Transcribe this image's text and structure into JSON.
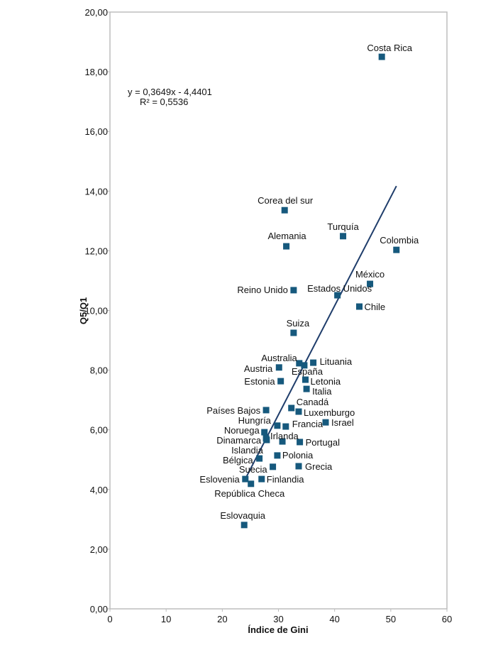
{
  "chart_data": {
    "type": "scatter",
    "xlabel": "Índice de Gini",
    "ylabel": "Q5/Q1",
    "xlim": [
      0,
      60
    ],
    "ylim": [
      0,
      20
    ],
    "xticks": [
      "0",
      "10",
      "20",
      "30",
      "40",
      "50",
      "60"
    ],
    "xtick_values": [
      0,
      10,
      20,
      30,
      40,
      50,
      60
    ],
    "yticks": [
      "0,00",
      "2,00",
      "4,00",
      "6,00",
      "8,00",
      "10,00",
      "12,00",
      "14,00",
      "16,00",
      "18,00",
      "20,00"
    ],
    "ytick_values": [
      0,
      2,
      4,
      6,
      8,
      10,
      12,
      14,
      16,
      18,
      20
    ],
    "grid": false,
    "marker_color": "#16597d",
    "trendline_color": "#1f3d6b",
    "trendline": {
      "slope": 0.3649,
      "intercept": -4.4401,
      "x_range": [
        24,
        51
      ]
    },
    "equation": "y = 0,3649x - 4,4401",
    "r_squared": "R² = 0,5536",
    "points": [
      {
        "label": "Costa Rica",
        "x": 48.4,
        "y": 18.5
      },
      {
        "label": "Corea del sur",
        "x": 31.1,
        "y": 13.36
      },
      {
        "label": "Alemania",
        "x": 31.4,
        "y": 12.15
      },
      {
        "label": "Turquía",
        "x": 41.5,
        "y": 12.49
      },
      {
        "label": "Colombia",
        "x": 51.0,
        "y": 12.03
      },
      {
        "label": "México",
        "x": 46.3,
        "y": 10.89
      },
      {
        "label": "Estados Unidos",
        "x": 40.5,
        "y": 10.51
      },
      {
        "label": "Reino Unido",
        "x": 32.7,
        "y": 10.68
      },
      {
        "label": "Chile",
        "x": 44.4,
        "y": 10.13
      },
      {
        "label": "Suiza",
        "x": 32.7,
        "y": 9.25
      },
      {
        "label": "Australia",
        "x": 33.7,
        "y": 8.23
      },
      {
        "label": "Lituania",
        "x": 36.2,
        "y": 8.25
      },
      {
        "label": "España",
        "x": 34.6,
        "y": 8.16
      },
      {
        "label": "Austria",
        "x": 30.1,
        "y": 8.09
      },
      {
        "label": "Letonia",
        "x": 34.8,
        "y": 7.68
      },
      {
        "label": "Estonia",
        "x": 30.4,
        "y": 7.63
      },
      {
        "label": "Italia",
        "x": 35.0,
        "y": 7.37
      },
      {
        "label": "Países Bajos",
        "x": 27.8,
        "y": 6.66
      },
      {
        "label": "Canadá",
        "x": 32.3,
        "y": 6.73
      },
      {
        "label": "Luxemburgo",
        "x": 33.6,
        "y": 6.61
      },
      {
        "label": "Israel",
        "x": 38.4,
        "y": 6.25
      },
      {
        "label": "Hungría",
        "x": 29.8,
        "y": 6.14
      },
      {
        "label": "Francia",
        "x": 31.3,
        "y": 6.11
      },
      {
        "label": "Noruega",
        "x": 27.5,
        "y": 5.92
      },
      {
        "label": "Irlanda",
        "x": 30.7,
        "y": 5.61
      },
      {
        "label": "Dinamarca",
        "x": 27.8,
        "y": 5.71
      },
      {
        "label": "Islandia",
        "x": 27.9,
        "y": 5.66
      },
      {
        "label": "Portugal",
        "x": 33.8,
        "y": 5.59
      },
      {
        "label": "Polonia",
        "x": 29.8,
        "y": 5.14
      },
      {
        "label": "Bélgica",
        "x": 26.6,
        "y": 5.04
      },
      {
        "label": "Suecia",
        "x": 29.0,
        "y": 4.76
      },
      {
        "label": "Grecia",
        "x": 33.6,
        "y": 4.78
      },
      {
        "label": "Eslovenia",
        "x": 24.1,
        "y": 4.35
      },
      {
        "label": "Finlandia",
        "x": 27.0,
        "y": 4.35
      },
      {
        "label": "República Checa",
        "x": 25.1,
        "y": 4.19
      },
      {
        "label": "Eslovaquia",
        "x": 23.9,
        "y": 2.81
      }
    ]
  }
}
